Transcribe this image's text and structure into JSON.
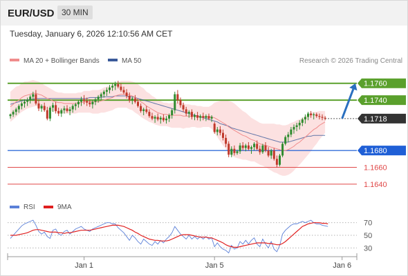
{
  "header": {
    "symbol": "EUR/USD",
    "timeframe": "30 MIN"
  },
  "timestamp": "Tuesday, January 6, 2026 12:10:56 AM CET",
  "legend": {
    "ma20": {
      "label": "MA 20 + Bollinger Bands",
      "color": "#f08c8c"
    },
    "ma50": {
      "label": "MA 50",
      "color": "#3a5a9a"
    }
  },
  "credit": "Research © 2026 Trading Central",
  "colors": {
    "up": "#2e8b2e",
    "down": "#c0392b",
    "green_level": "#5aa02c",
    "blue_level": "#1f5fd6",
    "red_level": "#e04848",
    "band": "#fbd7d7",
    "arrow": "#2a6fbf"
  },
  "chart_data": {
    "type": "candlestick",
    "price_axis": {
      "range": [
        1.163,
        1.1768
      ],
      "levels": [
        {
          "value": 1.176,
          "label": "1.1760",
          "kind": "resistance"
        },
        {
          "value": 1.174,
          "label": "1.1740",
          "kind": "resistance"
        },
        {
          "value": 1.1718,
          "label": "1.1718",
          "kind": "current"
        },
        {
          "value": 1.168,
          "label": "1.1680",
          "kind": "pivot"
        },
        {
          "value": 1.166,
          "label": "1.1660",
          "kind": "support"
        },
        {
          "value": 1.164,
          "label": "1.1640",
          "kind": "support"
        }
      ]
    },
    "x_ticks": [
      {
        "index": 26,
        "label": "Jan 1"
      },
      {
        "index": 72,
        "label": "Jan 5"
      },
      {
        "index": 117,
        "label": "Jan 6"
      }
    ],
    "candles": [
      [
        1.1721,
        1.1724,
        1.1718,
        1.1723
      ],
      [
        1.1723,
        1.1728,
        1.172,
        1.1726
      ],
      [
        1.1726,
        1.1731,
        1.1722,
        1.1729
      ],
      [
        1.1729,
        1.1735,
        1.1725,
        1.1733
      ],
      [
        1.1733,
        1.1738,
        1.1729,
        1.1736
      ],
      [
        1.1736,
        1.1741,
        1.1731,
        1.1738
      ],
      [
        1.1738,
        1.1743,
        1.1733,
        1.174
      ],
      [
        1.174,
        1.1746,
        1.1736,
        1.1744
      ],
      [
        1.1744,
        1.175,
        1.1739,
        1.1747
      ],
      [
        1.1747,
        1.1752,
        1.1734,
        1.1736
      ],
      [
        1.1736,
        1.1741,
        1.1727,
        1.173
      ],
      [
        1.173,
        1.1735,
        1.1726,
        1.1733
      ],
      [
        1.1733,
        1.1737,
        1.1726,
        1.1728
      ],
      [
        1.1728,
        1.1732,
        1.1716,
        1.1718
      ],
      [
        1.1718,
        1.1733,
        1.1715,
        1.1731
      ],
      [
        1.1731,
        1.1737,
        1.1726,
        1.1734
      ],
      [
        1.1734,
        1.1738,
        1.1724,
        1.1727
      ],
      [
        1.1727,
        1.1731,
        1.1721,
        1.1724
      ],
      [
        1.1724,
        1.173,
        1.172,
        1.1728
      ],
      [
        1.1728,
        1.1733,
        1.1724,
        1.173
      ],
      [
        1.173,
        1.1734,
        1.1725,
        1.1727
      ],
      [
        1.1727,
        1.1732,
        1.1722,
        1.1729
      ],
      [
        1.1729,
        1.1735,
        1.1725,
        1.1733
      ],
      [
        1.1733,
        1.1737,
        1.1728,
        1.1735
      ],
      [
        1.1735,
        1.174,
        1.1731,
        1.1738
      ],
      [
        1.1738,
        1.1744,
        1.1733,
        1.1741
      ],
      [
        1.1741,
        1.1746,
        1.1735,
        1.1739
      ],
      [
        1.1739,
        1.1743,
        1.1733,
        1.1737
      ],
      [
        1.1737,
        1.1741,
        1.1732,
        1.1735
      ],
      [
        1.1735,
        1.174,
        1.173,
        1.1738
      ],
      [
        1.1738,
        1.1743,
        1.1734,
        1.1741
      ],
      [
        1.1741,
        1.1746,
        1.1737,
        1.1744
      ],
      [
        1.1744,
        1.1749,
        1.174,
        1.1747
      ],
      [
        1.1747,
        1.1752,
        1.1743,
        1.175
      ],
      [
        1.175,
        1.1755,
        1.1745,
        1.1752
      ],
      [
        1.1752,
        1.1758,
        1.1748,
        1.1755
      ],
      [
        1.1755,
        1.176,
        1.1751,
        1.1757
      ],
      [
        1.1757,
        1.1762,
        1.1752,
        1.1759
      ],
      [
        1.1759,
        1.1763,
        1.1754,
        1.1756
      ],
      [
        1.1756,
        1.176,
        1.175,
        1.1752
      ],
      [
        1.1752,
        1.1756,
        1.1747,
        1.1749
      ],
      [
        1.1749,
        1.1753,
        1.1742,
        1.1745
      ],
      [
        1.1745,
        1.1749,
        1.1737,
        1.174
      ],
      [
        1.174,
        1.1744,
        1.1735,
        1.1742
      ],
      [
        1.1742,
        1.1746,
        1.1736,
        1.1738
      ],
      [
        1.1738,
        1.1741,
        1.1731,
        1.1733
      ],
      [
        1.1733,
        1.1736,
        1.1725,
        1.1727
      ],
      [
        1.1727,
        1.1731,
        1.1722,
        1.1729
      ],
      [
        1.1729,
        1.1733,
        1.1724,
        1.1726
      ],
      [
        1.1726,
        1.1729,
        1.1719,
        1.1721
      ],
      [
        1.1721,
        1.1725,
        1.1716,
        1.1718
      ],
      [
        1.1718,
        1.1722,
        1.1713,
        1.172
      ],
      [
        1.172,
        1.1724,
        1.1715,
        1.1717
      ],
      [
        1.1717,
        1.1721,
        1.1712,
        1.1719
      ],
      [
        1.1719,
        1.1723,
        1.1714,
        1.1716
      ],
      [
        1.1716,
        1.1721,
        1.1712,
        1.1718
      ],
      [
        1.1718,
        1.1724,
        1.1714,
        1.1722
      ],
      [
        1.1722,
        1.173,
        1.1718,
        1.1728
      ],
      [
        1.1728,
        1.175,
        1.1724,
        1.1747
      ],
      [
        1.1747,
        1.1752,
        1.1736,
        1.174
      ],
      [
        1.174,
        1.1743,
        1.1731,
        1.1734
      ],
      [
        1.1734,
        1.1737,
        1.1726,
        1.1729
      ],
      [
        1.1729,
        1.1732,
        1.1721,
        1.1724
      ],
      [
        1.1724,
        1.1728,
        1.1719,
        1.1726
      ],
      [
        1.1726,
        1.1729,
        1.1717,
        1.172
      ],
      [
        1.172,
        1.1724,
        1.1716,
        1.1722
      ],
      [
        1.1722,
        1.1726,
        1.1716,
        1.1719
      ],
      [
        1.1719,
        1.1723,
        1.1715,
        1.1721
      ],
      [
        1.1721,
        1.1725,
        1.1716,
        1.1719
      ],
      [
        1.1719,
        1.1723,
        1.1715,
        1.1721
      ],
      [
        1.1721,
        1.1724,
        1.1716,
        1.1718
      ],
      [
        1.1718,
        1.1722,
        1.1714,
        1.172
      ],
      [
        1.1712,
        1.1714,
        1.17,
        1.1702
      ],
      [
        1.1702,
        1.1708,
        1.1698,
        1.1705
      ],
      [
        1.1705,
        1.1709,
        1.1698,
        1.1701
      ],
      [
        1.1701,
        1.1705,
        1.1692,
        1.1695
      ],
      [
        1.1695,
        1.1699,
        1.1684,
        1.1688
      ],
      [
        1.1688,
        1.1691,
        1.1672,
        1.1675
      ],
      [
        1.1675,
        1.1685,
        1.1672,
        1.1682
      ],
      [
        1.1682,
        1.1686,
        1.1674,
        1.1677
      ],
      [
        1.1677,
        1.1681,
        1.1675,
        1.1679
      ],
      [
        1.1679,
        1.1689,
        1.1676,
        1.1686
      ],
      [
        1.1686,
        1.169,
        1.168,
        1.1683
      ],
      [
        1.1683,
        1.1688,
        1.1679,
        1.1686
      ],
      [
        1.1686,
        1.169,
        1.168,
        1.1682
      ],
      [
        1.1682,
        1.1686,
        1.1676,
        1.1684
      ],
      [
        1.1684,
        1.169,
        1.168,
        1.1688
      ],
      [
        1.1688,
        1.1692,
        1.168,
        1.1682
      ],
      [
        1.1682,
        1.1686,
        1.1675,
        1.1678
      ],
      [
        1.1678,
        1.1688,
        1.1676,
        1.1686
      ],
      [
        1.1686,
        1.169,
        1.1678,
        1.168
      ],
      [
        1.168,
        1.1684,
        1.1672,
        1.1674
      ],
      [
        1.1674,
        1.1682,
        1.167,
        1.168
      ],
      [
        1.168,
        1.1683,
        1.1668,
        1.167
      ],
      [
        1.167,
        1.1674,
        1.166,
        1.1663
      ],
      [
        1.1663,
        1.1676,
        1.1661,
        1.1674
      ],
      [
        1.1674,
        1.169,
        1.1672,
        1.1688
      ],
      [
        1.1688,
        1.1698,
        1.1686,
        1.1696
      ],
      [
        1.1696,
        1.1702,
        1.169,
        1.1699
      ],
      [
        1.1699,
        1.1708,
        1.1696,
        1.1705
      ],
      [
        1.1705,
        1.1711,
        1.17,
        1.1708
      ],
      [
        1.1708,
        1.1713,
        1.1703,
        1.171
      ],
      [
        1.171,
        1.1716,
        1.1705,
        1.1713
      ],
      [
        1.1713,
        1.1719,
        1.1709,
        1.1717
      ],
      [
        1.1717,
        1.1723,
        1.1712,
        1.172
      ],
      [
        1.172,
        1.1726,
        1.1716,
        1.1724
      ],
      [
        1.1724,
        1.1727,
        1.1719,
        1.1722
      ],
      [
        1.1722,
        1.1725,
        1.1717,
        1.1723
      ],
      [
        1.1723,
        1.1725,
        1.1719,
        1.1721
      ],
      [
        1.1721,
        1.1724,
        1.1717,
        1.172
      ],
      [
        1.172,
        1.1723,
        1.1716,
        1.1719
      ],
      [
        1.1719,
        1.1721,
        1.1716,
        1.1718
      ]
    ],
    "ma20": [
      1.1732,
      1.1735,
      1.1738,
      1.174,
      1.1743,
      1.1745,
      1.1746,
      1.1747,
      1.1748,
      1.1748,
      1.1747,
      1.1746,
      1.1744,
      1.1742,
      1.1741,
      1.1739,
      1.1738,
      1.1737,
      1.1737,
      1.1736,
      1.1736,
      1.1736,
      1.1736,
      1.1736,
      1.1737,
      1.1737,
      1.1738,
      1.1738,
      1.1738,
      1.1738,
      1.1738,
      1.1738,
      1.1739,
      1.174,
      1.1741,
      1.1742,
      1.1743,
      1.1745,
      1.1746,
      1.1747,
      1.1747,
      1.1747,
      1.1746,
      1.1745,
      1.1743,
      1.1741,
      1.1738,
      1.1736,
      1.1733,
      1.1731,
      1.1729,
      1.1727,
      1.1725,
      1.1724,
      1.1723,
      1.1723,
      1.1722,
      1.1722,
      1.1722,
      1.1722,
      1.1722,
      1.1721,
      1.1721,
      1.1721,
      1.1721,
      1.1721,
      1.172,
      1.172,
      1.172,
      1.172,
      1.172,
      1.172,
      1.1719,
      1.1717,
      1.1715,
      1.1713,
      1.1711,
      1.1708,
      1.1706,
      1.1704,
      1.1702,
      1.17,
      1.1698,
      1.1697,
      1.1695,
      1.1693,
      1.1692,
      1.169,
      1.1688,
      1.1687,
      1.1686,
      1.1685,
      1.1684,
      1.1683,
      1.1682,
      1.1681,
      1.168,
      1.168,
      1.1681,
      1.1683,
      1.1685,
      1.1688,
      1.169,
      1.1693,
      1.1696,
      1.1699,
      1.1702,
      1.1705,
      1.1707,
      1.171,
      1.1712,
      1.1714
    ],
    "bb_width": [
      0.0018,
      0.0018,
      0.0018,
      0.0017,
      0.0017,
      0.0017,
      0.0016,
      0.0016,
      0.0016,
      0.0015,
      0.0015,
      0.0014,
      0.0014,
      0.0014,
      0.0013,
      0.0013,
      0.0012,
      0.0012,
      0.0012,
      0.0012,
      0.0012,
      0.0012,
      0.0012,
      0.0012,
      0.0012,
      0.0012,
      0.0013,
      0.0013,
      0.0013,
      0.0014,
      0.0014,
      0.0014,
      0.0014,
      0.0015,
      0.0015,
      0.0015,
      0.0015,
      0.0015,
      0.0015,
      0.0016,
      0.0016,
      0.0016,
      0.0017,
      0.0017,
      0.0018,
      0.0018,
      0.0018,
      0.0018,
      0.0017,
      0.0017,
      0.0016,
      0.0016,
      0.0015,
      0.0015,
      0.0014,
      0.0014,
      0.0014,
      0.0015,
      0.0015,
      0.0015,
      0.0015,
      0.0015,
      0.0014,
      0.0014,
      0.0013,
      0.0013,
      0.0013,
      0.0013,
      0.0012,
      0.0012,
      0.0012,
      0.0014,
      0.0018,
      0.0021,
      0.0024,
      0.0027,
      0.0029,
      0.0031,
      0.0032,
      0.0032,
      0.0031,
      0.003,
      0.0029,
      0.0028,
      0.0027,
      0.0026,
      0.0025,
      0.0025,
      0.0025,
      0.0025,
      0.0026,
      0.0027,
      0.0028,
      0.0029,
      0.0029,
      0.003,
      0.003,
      0.003,
      0.003,
      0.003,
      0.0029,
      0.0028,
      0.0027,
      0.0026,
      0.0025,
      0.0024,
      0.0023,
      0.0021,
      0.0019,
      0.0017,
      0.0015,
      0.0013,
      0.0012
    ],
    "ma50": [
      1.1735,
      1.1736,
      1.1737,
      1.1738,
      1.1739,
      1.174,
      1.174,
      1.1741,
      1.1741,
      1.1742,
      1.1742,
      1.1742,
      1.1742,
      1.1742,
      1.1742,
      1.1742,
      1.1742,
      1.1742,
      1.1742,
      1.1742,
      1.1742,
      1.1742,
      1.1742,
      1.1742,
      1.1742,
      1.1742,
      1.1742,
      1.1742,
      1.1743,
      1.1743,
      1.1743,
      1.1743,
      1.1743,
      1.1744,
      1.1744,
      1.1744,
      1.1744,
      1.1745,
      1.1745,
      1.1745,
      1.1745,
      1.1745,
      1.1744,
      1.1744,
      1.1743,
      1.1742,
      1.1741,
      1.174,
      1.1739,
      1.1738,
      1.1737,
      1.1736,
      1.1735,
      1.1734,
      1.1733,
      1.1732,
      1.1731,
      1.173,
      1.1729,
      1.1728,
      1.1727,
      1.1726,
      1.1725,
      1.1724,
      1.1723,
      1.1722,
      1.1721,
      1.172,
      1.1719,
      1.1718,
      1.1717,
      1.1716,
      1.1715,
      1.1714,
      1.1712,
      1.1711,
      1.171,
      1.1709,
      1.1707,
      1.1706,
      1.1705,
      1.1704,
      1.1703,
      1.1702,
      1.1701,
      1.17,
      1.1699,
      1.1698,
      1.1697,
      1.1696,
      1.1695,
      1.1694,
      1.1693,
      1.1692,
      1.1691,
      1.169,
      1.169,
      1.169,
      1.169,
      1.1691,
      1.1692,
      1.1693,
      1.1694,
      1.1695,
      1.1696,
      1.1697,
      1.1697,
      1.1698,
      1.1698,
      1.1698,
      1.1698,
      1.1698
    ],
    "projection_arrow": {
      "from_index": 117,
      "from_price": 1.1718,
      "to_index": 130,
      "to_price": 1.176
    },
    "rsi": {
      "legend": [
        {
          "label": "RSI",
          "color": "#5b80d8"
        },
        {
          "label": "9MA",
          "color": "#e01f1f"
        }
      ],
      "range": [
        15,
        85
      ],
      "levels": [
        70,
        50,
        30
      ],
      "rsi": [
        45,
        50,
        55,
        60,
        65,
        68,
        70,
        72,
        74,
        66,
        56,
        52,
        55,
        48,
        45,
        58,
        60,
        52,
        50,
        56,
        58,
        52,
        56,
        60,
        62,
        64,
        60,
        58,
        56,
        60,
        62,
        64,
        66,
        68,
        70,
        70,
        68,
        68,
        62,
        58,
        54,
        48,
        42,
        50,
        46,
        40,
        36,
        44,
        40,
        36,
        34,
        40,
        36,
        42,
        38,
        44,
        48,
        54,
        64,
        58,
        52,
        48,
        44,
        50,
        44,
        48,
        44,
        48,
        44,
        48,
        44,
        46,
        32,
        38,
        32,
        28,
        26,
        22,
        34,
        28,
        30,
        40,
        36,
        42,
        36,
        42,
        46,
        36,
        32,
        44,
        36,
        30,
        40,
        28,
        24,
        34,
        52,
        58,
        62,
        66,
        68,
        68,
        70,
        72,
        70,
        72,
        74,
        70,
        68,
        68,
        66,
        65,
        64
      ],
      "ma9": [
        50,
        50,
        50,
        51,
        52,
        53,
        54,
        56,
        58,
        59,
        59,
        58,
        57,
        56,
        55,
        55,
        55,
        54,
        54,
        53,
        54,
        54,
        55,
        56,
        57,
        58,
        58,
        58,
        58,
        59,
        60,
        61,
        62,
        63,
        64,
        65,
        66,
        66,
        66,
        65,
        64,
        62,
        60,
        58,
        55,
        53,
        50,
        48,
        46,
        44,
        43,
        42,
        42,
        41,
        41,
        41,
        42,
        44,
        46,
        48,
        50,
        51,
        51,
        51,
        50,
        49,
        48,
        47,
        47,
        47,
        46,
        46,
        44,
        42,
        40,
        38,
        35,
        33,
        32,
        31,
        31,
        32,
        33,
        34,
        35,
        36,
        37,
        38,
        38,
        38,
        38,
        37,
        37,
        36,
        35,
        35,
        37,
        40,
        44,
        48,
        52,
        56,
        60,
        64,
        66,
        68,
        69,
        70,
        70,
        70,
        69,
        69,
        68
      ]
    }
  }
}
